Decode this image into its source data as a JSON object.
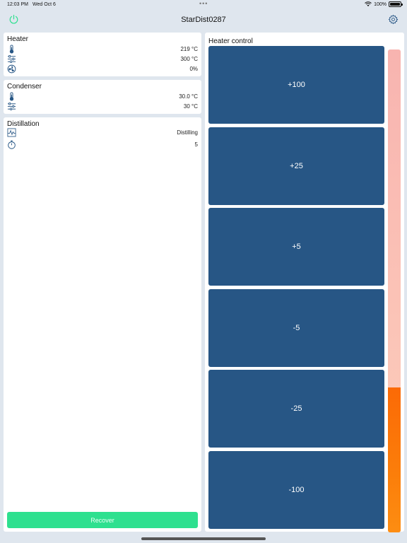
{
  "status_bar": {
    "time": "12:03 PM",
    "date": "Wed Oct 6",
    "dots": "•••",
    "battery": "100%"
  },
  "nav": {
    "title": "StarDist0287",
    "power_icon": "power-icon",
    "settings_icon": "gear-icon"
  },
  "heater": {
    "title": "Heater",
    "rows": [
      {
        "icon": "thermometer-icon",
        "value": "219 °C"
      },
      {
        "icon": "sliders-icon",
        "value": "300 °C"
      },
      {
        "icon": "fan-icon",
        "value": "0%"
      }
    ]
  },
  "condenser": {
    "title": "Condenser",
    "rows": [
      {
        "icon": "thermometer-icon",
        "value": "30.0 °C"
      },
      {
        "icon": "sliders-icon",
        "value": "30 °C"
      }
    ]
  },
  "distillation": {
    "title": "Distillation",
    "rows": [
      {
        "icon": "waveform-icon",
        "value": "Distilling"
      },
      {
        "icon": "stopwatch-icon",
        "value": "5"
      }
    ],
    "recover_label": "Recover"
  },
  "heater_control": {
    "title": "Heater control",
    "buttons": [
      "+100",
      "+25",
      "+5",
      "-5",
      "-25",
      "-100"
    ],
    "level_fraction": 0.3
  },
  "colors": {
    "accent_blue": "#275685",
    "recover_green": "#2ee08f",
    "power_green": "#2ee08f",
    "level_orange": "#fb6a06",
    "level_track": "#f8b4b0"
  }
}
